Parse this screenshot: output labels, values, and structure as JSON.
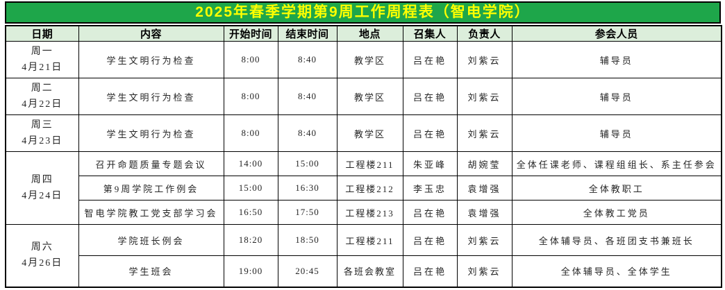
{
  "title": "2025年春季学期第9周工作周程表（智电学院）",
  "colors": {
    "title_bg": "#1EA64A",
    "title_text": "#FFFF00",
    "header_bg": "#DCEEDB",
    "border": "#000000"
  },
  "table": {
    "headers": [
      "日期",
      "内容",
      "开始时间",
      "结束时间",
      "地点",
      "召集人",
      "负责人",
      "参会人员"
    ],
    "day_groups": [
      {
        "day": "周一",
        "date": "4月21日",
        "rows": [
          {
            "content": "学生文明行为检查",
            "start": "8:00",
            "end": "8:40",
            "location": "教学区",
            "convener": "吕在艳",
            "lead": "刘紫云",
            "participants": "辅导员"
          }
        ]
      },
      {
        "day": "周二",
        "date": "4月22日",
        "rows": [
          {
            "content": "学生文明行为检查",
            "start": "8:00",
            "end": "8:40",
            "location": "教学区",
            "convener": "吕在艳",
            "lead": "刘紫云",
            "participants": "辅导员"
          }
        ]
      },
      {
        "day": "周三",
        "date": "4月23日",
        "rows": [
          {
            "content": "学生文明行为检查",
            "start": "8:00",
            "end": "8:40",
            "location": "教学区",
            "convener": "吕在艳",
            "lead": "刘紫云",
            "participants": "辅导员"
          }
        ]
      },
      {
        "day": "周四",
        "date": "4月24日",
        "rows": [
          {
            "content": "召开命题质量专题会议",
            "start": "14:00",
            "end": "15:00",
            "location": "工程楼211",
            "convener": "朱亚峰",
            "lead": "胡婉莹",
            "participants": "全体任课老师、课程组组长、系主任参会"
          },
          {
            "content": "第9周学院工作例会",
            "start": "15:00",
            "end": "16:30",
            "location": "工程楼212",
            "convener": "李玉忠",
            "lead": "袁增强",
            "participants": "全体教职工"
          },
          {
            "content": "智电学院教工党支部学习会",
            "start": "16:50",
            "end": "17:50",
            "location": "工程楼213",
            "convener": "吕在艳",
            "lead": "袁增强",
            "participants": "全体教工党员"
          }
        ]
      },
      {
        "day": "周六",
        "date": "4月26日",
        "rows": [
          {
            "content": "学院班长例会",
            "start": "18:20",
            "end": "18:50",
            "location": "工程楼211",
            "convener": "吕在艳",
            "lead": "刘紫云",
            "participants": "全体辅导员、各班团支书兼班长"
          },
          {
            "content": "学生班会",
            "start": "19:00",
            "end": "20:45",
            "location": "各班会教室",
            "convener": "吕在艳",
            "lead": "刘紫云",
            "participants": "全体辅导员、全体学生"
          }
        ]
      }
    ]
  }
}
